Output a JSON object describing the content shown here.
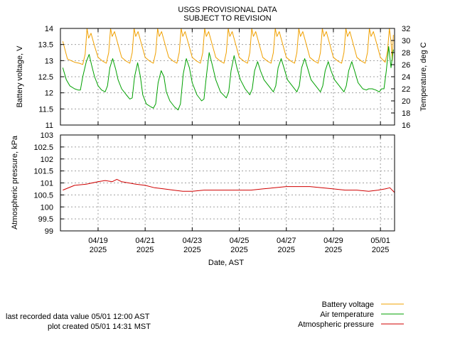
{
  "header": {
    "title_line1": "USGS PROVISIONAL DATA",
    "title_line2": "SUBJECT TO REVISION"
  },
  "footer": {
    "last_recorded": "last recorded data value 05/01 12:00 AST",
    "plot_created": "plot created 05/01 14:31 MST"
  },
  "chart_data": [
    {
      "type": "line",
      "xlabel": "",
      "ylabel": "Battery voltage, V",
      "ylim": [
        11,
        14
      ],
      "yticks": [
        "11",
        "11.5",
        "12",
        "12.5",
        "13",
        "13.5",
        "14"
      ],
      "y2label": "Temperature, deg C",
      "y2lim": [
        16,
        32
      ],
      "y2ticks": [
        "16",
        "18",
        "20",
        "22",
        "24",
        "26",
        "28",
        "30",
        "32"
      ],
      "xlim_days": [
        -1.6,
        12.6
      ],
      "grid": true,
      "series": [
        {
          "name": "Battery voltage",
          "axis": "left",
          "color": "#f0a000",
          "points": [
            [
              -1.5,
              13.6
            ],
            [
              -1.3,
              13.05
            ],
            [
              -1.0,
              12.95
            ],
            [
              -0.8,
              12.92
            ],
            [
              -0.65,
              12.88
            ],
            [
              -0.55,
              13.2
            ],
            [
              -0.47,
              14.0
            ],
            [
              -0.4,
              13.7
            ],
            [
              -0.3,
              13.85
            ],
            [
              -0.15,
              13.45
            ],
            [
              0.0,
              13.1
            ],
            [
              0.2,
              12.98
            ],
            [
              0.35,
              12.92
            ],
            [
              0.45,
              13.25
            ],
            [
              0.53,
              14.0
            ],
            [
              0.6,
              13.75
            ],
            [
              0.7,
              13.9
            ],
            [
              0.85,
              13.5
            ],
            [
              1.0,
              13.1
            ],
            [
              1.2,
              12.98
            ],
            [
              1.35,
              12.92
            ],
            [
              1.45,
              13.25
            ],
            [
              1.53,
              14.0
            ],
            [
              1.6,
              13.75
            ],
            [
              1.7,
              13.9
            ],
            [
              1.85,
              13.5
            ],
            [
              2.0,
              13.1
            ],
            [
              2.2,
              12.98
            ],
            [
              2.35,
              12.92
            ],
            [
              2.45,
              13.25
            ],
            [
              2.53,
              14.0
            ],
            [
              2.6,
              13.75
            ],
            [
              2.7,
              13.9
            ],
            [
              2.85,
              13.5
            ],
            [
              3.0,
              13.1
            ],
            [
              3.2,
              12.98
            ],
            [
              3.35,
              12.92
            ],
            [
              3.45,
              13.25
            ],
            [
              3.53,
              14.0
            ],
            [
              3.6,
              13.75
            ],
            [
              3.7,
              13.9
            ],
            [
              3.85,
              13.5
            ],
            [
              4.0,
              13.1
            ],
            [
              4.2,
              12.98
            ],
            [
              4.35,
              12.92
            ],
            [
              4.45,
              13.25
            ],
            [
              4.53,
              14.0
            ],
            [
              4.6,
              13.75
            ],
            [
              4.7,
              13.9
            ],
            [
              4.85,
              13.5
            ],
            [
              5.0,
              13.1
            ],
            [
              5.2,
              12.98
            ],
            [
              5.35,
              12.92
            ],
            [
              5.45,
              13.25
            ],
            [
              5.53,
              14.0
            ],
            [
              5.6,
              13.75
            ],
            [
              5.7,
              13.9
            ],
            [
              5.85,
              13.5
            ],
            [
              6.0,
              13.1
            ],
            [
              6.2,
              12.98
            ],
            [
              6.35,
              12.92
            ],
            [
              6.45,
              13.25
            ],
            [
              6.53,
              14.0
            ],
            [
              6.6,
              13.75
            ],
            [
              6.7,
              13.9
            ],
            [
              6.85,
              13.5
            ],
            [
              7.0,
              13.1
            ],
            [
              7.2,
              12.98
            ],
            [
              7.35,
              12.92
            ],
            [
              7.45,
              13.25
            ],
            [
              7.53,
              14.0
            ],
            [
              7.6,
              13.75
            ],
            [
              7.7,
              13.9
            ],
            [
              7.85,
              13.5
            ],
            [
              8.0,
              13.1
            ],
            [
              8.2,
              12.98
            ],
            [
              8.35,
              12.92
            ],
            [
              8.45,
              13.25
            ],
            [
              8.53,
              14.0
            ],
            [
              8.6,
              13.75
            ],
            [
              8.7,
              13.9
            ],
            [
              8.85,
              13.5
            ],
            [
              9.0,
              13.1
            ],
            [
              9.2,
              12.98
            ],
            [
              9.35,
              12.92
            ],
            [
              9.45,
              13.25
            ],
            [
              9.53,
              14.0
            ],
            [
              9.6,
              13.75
            ],
            [
              9.7,
              13.9
            ],
            [
              9.85,
              13.5
            ],
            [
              10.0,
              13.1
            ],
            [
              10.2,
              12.98
            ],
            [
              10.35,
              12.92
            ],
            [
              10.45,
              13.25
            ],
            [
              10.53,
              14.0
            ],
            [
              10.6,
              13.75
            ],
            [
              10.7,
              13.9
            ],
            [
              10.85,
              13.5
            ],
            [
              11.0,
              13.1
            ],
            [
              11.2,
              12.98
            ],
            [
              11.35,
              12.92
            ],
            [
              11.45,
              13.25
            ],
            [
              11.53,
              14.0
            ],
            [
              11.6,
              13.75
            ],
            [
              11.7,
              13.9
            ],
            [
              11.85,
              13.5
            ],
            [
              12.0,
              13.1
            ],
            [
              12.2,
              12.95
            ],
            [
              12.3,
              13.3
            ],
            [
              12.38,
              14.0
            ],
            [
              12.45,
              13.6
            ],
            [
              12.5,
              13.0
            ],
            [
              12.55,
              13.8
            ]
          ]
        },
        {
          "name": "Air temperature",
          "axis": "right",
          "color": "#00a000",
          "points": [
            [
              -1.5,
              25.5
            ],
            [
              -1.35,
              23.5
            ],
            [
              -1.2,
              22.5
            ],
            [
              -1.0,
              22.0
            ],
            [
              -0.85,
              21.8
            ],
            [
              -0.75,
              21.8
            ],
            [
              -0.65,
              24.0
            ],
            [
              -0.5,
              26.5
            ],
            [
              -0.38,
              27.7
            ],
            [
              -0.28,
              26.0
            ],
            [
              -0.15,
              24.0
            ],
            [
              0.0,
              22.5
            ],
            [
              0.15,
              21.8
            ],
            [
              0.3,
              21.5
            ],
            [
              0.4,
              22.5
            ],
            [
              0.5,
              25.5
            ],
            [
              0.62,
              27.0
            ],
            [
              0.75,
              25.2
            ],
            [
              0.85,
              23.5
            ],
            [
              1.0,
              22.0
            ],
            [
              1.2,
              21.0
            ],
            [
              1.35,
              20.3
            ],
            [
              1.45,
              20.5
            ],
            [
              1.55,
              24.0
            ],
            [
              1.68,
              26.3
            ],
            [
              1.8,
              24.0
            ],
            [
              1.9,
              21.0
            ],
            [
              2.05,
              19.5
            ],
            [
              2.25,
              19.0
            ],
            [
              2.35,
              18.8
            ],
            [
              2.45,
              19.5
            ],
            [
              2.55,
              23.0
            ],
            [
              2.68,
              25.0
            ],
            [
              2.8,
              24.0
            ],
            [
              2.9,
              21.5
            ],
            [
              3.05,
              20.0
            ],
            [
              3.25,
              19.0
            ],
            [
              3.4,
              18.5
            ],
            [
              3.5,
              19.5
            ],
            [
              3.62,
              24.5
            ],
            [
              3.75,
              27.0
            ],
            [
              3.88,
              25.5
            ],
            [
              4.0,
              23.0
            ],
            [
              4.2,
              21.0
            ],
            [
              4.4,
              20.0
            ],
            [
              4.5,
              20.3
            ],
            [
              4.6,
              24.0
            ],
            [
              4.72,
              28.0
            ],
            [
              4.85,
              26.0
            ],
            [
              5.0,
              23.5
            ],
            [
              5.2,
              21.5
            ],
            [
              5.45,
              20.5
            ],
            [
              5.55,
              21.5
            ],
            [
              5.65,
              25.0
            ],
            [
              5.78,
              27.5
            ],
            [
              5.9,
              25.5
            ],
            [
              6.05,
              23.5
            ],
            [
              6.25,
              22.0
            ],
            [
              6.45,
              21.0
            ],
            [
              6.55,
              22.0
            ],
            [
              6.65,
              25.0
            ],
            [
              6.78,
              26.5
            ],
            [
              6.9,
              25.0
            ],
            [
              7.05,
              23.5
            ],
            [
              7.25,
              22.5
            ],
            [
              7.45,
              21.5
            ],
            [
              7.55,
              22.5
            ],
            [
              7.65,
              25.5
            ],
            [
              7.78,
              27.0
            ],
            [
              7.9,
              25.5
            ],
            [
              8.05,
              23.5
            ],
            [
              8.25,
              22.5
            ],
            [
              8.45,
              21.5
            ],
            [
              8.55,
              22.5
            ],
            [
              8.65,
              25.5
            ],
            [
              8.78,
              27.0
            ],
            [
              8.9,
              25.5
            ],
            [
              9.05,
              23.5
            ],
            [
              9.25,
              22.5
            ],
            [
              9.45,
              21.5
            ],
            [
              9.55,
              22.5
            ],
            [
              9.65,
              25.0
            ],
            [
              9.78,
              26.5
            ],
            [
              9.9,
              25.0
            ],
            [
              10.05,
              23.5
            ],
            [
              10.25,
              22.5
            ],
            [
              10.45,
              21.5
            ],
            [
              10.55,
              22.5
            ],
            [
              10.65,
              25.0
            ],
            [
              10.78,
              26.5
            ],
            [
              10.9,
              25.0
            ],
            [
              11.05,
              23.0
            ],
            [
              11.25,
              22.0
            ],
            [
              11.4,
              21.8
            ],
            [
              11.5,
              22.0
            ],
            [
              11.65,
              22.0
            ],
            [
              11.8,
              21.8
            ],
            [
              11.95,
              21.5
            ],
            [
              12.05,
              22.0
            ],
            [
              12.15,
              22.0
            ],
            [
              12.25,
              25.0
            ],
            [
              12.35,
              29.0
            ],
            [
              12.45,
              25.5
            ],
            [
              12.55,
              28.5
            ]
          ]
        }
      ]
    },
    {
      "type": "line",
      "xlabel": "Date, AST",
      "ylabel": "Atmospheric pressure, kPa",
      "ylim": [
        99,
        103
      ],
      "yticks": [
        "99",
        "99.5",
        "100",
        "100.5",
        "101",
        "101.5",
        "102",
        "102.5",
        "103"
      ],
      "xlim_days": [
        -1.6,
        12.6
      ],
      "xticks": [
        {
          "day": 0,
          "line1": "04/19",
          "line2": "2025"
        },
        {
          "day": 2,
          "line1": "04/21",
          "line2": "2025"
        },
        {
          "day": 4,
          "line1": "04/23",
          "line2": "2025"
        },
        {
          "day": 6,
          "line1": "04/25",
          "line2": "2025"
        },
        {
          "day": 8,
          "line1": "04/27",
          "line2": "2025"
        },
        {
          "day": 10,
          "line1": "04/29",
          "line2": "2025"
        },
        {
          "day": 12,
          "line1": "05/01",
          "line2": "2025"
        }
      ],
      "grid": true,
      "series": [
        {
          "name": "Atmospheric pressure",
          "color": "#d00000",
          "points": [
            [
              -1.5,
              100.7
            ],
            [
              -1.0,
              100.9
            ],
            [
              -0.5,
              100.95
            ],
            [
              0.0,
              101.05
            ],
            [
              0.3,
              101.1
            ],
            [
              0.6,
              101.05
            ],
            [
              0.8,
              101.15
            ],
            [
              1.0,
              101.05
            ],
            [
              1.3,
              101.0
            ],
            [
              1.6,
              100.95
            ],
            [
              2.0,
              100.9
            ],
            [
              2.4,
              100.8
            ],
            [
              2.8,
              100.75
            ],
            [
              3.2,
              100.7
            ],
            [
              3.6,
              100.65
            ],
            [
              4.0,
              100.65
            ],
            [
              4.5,
              100.7
            ],
            [
              5.0,
              100.7
            ],
            [
              5.5,
              100.7
            ],
            [
              6.0,
              100.7
            ],
            [
              6.5,
              100.7
            ],
            [
              7.0,
              100.75
            ],
            [
              7.5,
              100.8
            ],
            [
              8.0,
              100.85
            ],
            [
              8.5,
              100.85
            ],
            [
              9.0,
              100.85
            ],
            [
              9.5,
              100.8
            ],
            [
              10.0,
              100.75
            ],
            [
              10.5,
              100.7
            ],
            [
              11.0,
              100.7
            ],
            [
              11.5,
              100.65
            ],
            [
              11.9,
              100.7
            ],
            [
              12.2,
              100.75
            ],
            [
              12.4,
              100.8
            ],
            [
              12.6,
              100.6
            ]
          ]
        }
      ]
    }
  ]
}
